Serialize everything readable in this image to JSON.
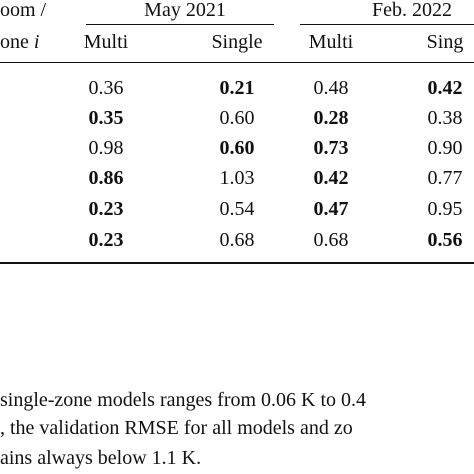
{
  "table": {
    "header": {
      "stub": [
        "oom /",
        "one"
      ],
      "stub_var": "i",
      "groups": [
        "May 2021",
        "Feb. 2022"
      ],
      "columns": [
        "Multi",
        "Single",
        "Multi",
        "Sing"
      ]
    },
    "rows": [
      [
        "0.36",
        "0.21",
        "0.48",
        "0.42"
      ],
      [
        "0.35",
        "0.60",
        "0.28",
        "0.38"
      ],
      [
        "0.98",
        "0.60",
        "0.73",
        "0.90"
      ],
      [
        "0.86",
        "1.03",
        "0.42",
        "0.77"
      ],
      [
        "0.23",
        "0.54",
        "0.47",
        "0.95"
      ],
      [
        "0.23",
        "0.68",
        "0.68",
        "0.56"
      ]
    ],
    "bold": [
      [
        false,
        true,
        false,
        true
      ],
      [
        true,
        false,
        true,
        false
      ],
      [
        false,
        true,
        true,
        false
      ],
      [
        true,
        false,
        true,
        false
      ],
      [
        true,
        false,
        true,
        false
      ],
      [
        true,
        false,
        false,
        true
      ]
    ]
  },
  "text": {
    "lines": [
      "single-zone models ranges from 0.06 K to 0.4",
      ", the validation RMSE for all models and zo",
      "ains always below 1.1 K."
    ]
  }
}
